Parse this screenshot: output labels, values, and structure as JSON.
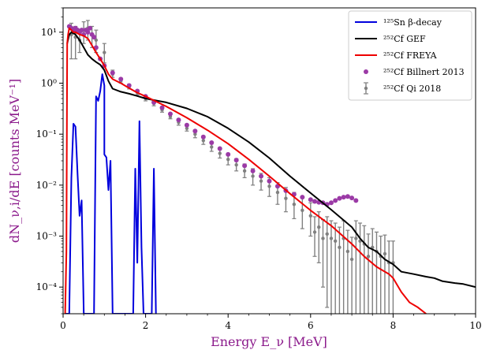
{
  "chart_data": {
    "type": "line",
    "title": "",
    "xlabel": "Energy E_ν [MeV]",
    "ylabel": "dN_ν,i/dE [counts MeV⁻¹]",
    "yscale": "log",
    "xlim": [
      0,
      10
    ],
    "ylim": [
      3e-05,
      30
    ],
    "x_ticks": [
      0,
      2,
      4,
      6,
      8,
      10
    ],
    "y_ticks": [
      0.0001,
      0.001,
      0.01,
      0.1,
      1,
      10
    ],
    "y_tick_labels": [
      "10⁻⁴",
      "10⁻³",
      "10⁻²",
      "10⁻¹",
      "10⁰",
      "10¹"
    ],
    "grid": false,
    "legend_position": "top-right",
    "colors": {
      "sn": "#0000dd",
      "gef": "#000000",
      "freya": "#ee0000",
      "billnert": "#9b3aa6",
      "qi": "#808080",
      "ylabel": "#8b1a8b"
    },
    "series": [
      {
        "name": "¹²⁵Sn β-decay",
        "kind": "line",
        "color": "#0000dd",
        "x": [
          0.05,
          0.1,
          0.15,
          0.2,
          0.25,
          0.3,
          0.35,
          0.4,
          0.45,
          0.5,
          0.55,
          0.6,
          0.65,
          0.65,
          0.7,
          0.75,
          0.8,
          0.85,
          0.85,
          0.9,
          0.95,
          1.0,
          1.0,
          1.05,
          1.1,
          1.15,
          1.2,
          1.25,
          1.3,
          1.35,
          1.4,
          1.45,
          1.5,
          1.5,
          1.55,
          1.6,
          1.65,
          1.7,
          1.75,
          1.8,
          1.85,
          1.9,
          1.95,
          2.0,
          2.05,
          2.1,
          2.15,
          2.2,
          2.25
        ],
        "y": [
          3e-05,
          3e-05,
          3e-05,
          0.014,
          0.16,
          0.14,
          0.017,
          0.0025,
          0.005,
          3e-05,
          3e-05,
          3e-05,
          3e-05,
          3e-05,
          3e-05,
          3e-05,
          0.55,
          0.45,
          0.45,
          0.7,
          1.5,
          0.9,
          0.04,
          0.035,
          0.008,
          0.03,
          3e-05,
          3e-05,
          3e-05,
          3e-05,
          3e-05,
          3e-05,
          3e-05,
          3e-05,
          3e-05,
          3e-05,
          3e-05,
          3e-05,
          0.021,
          0.0003,
          0.18,
          0.0006,
          3e-05,
          3e-05,
          3e-05,
          3e-05,
          3e-05,
          0.021,
          3e-05
        ]
      },
      {
        "name": "²⁵²Cf GEF",
        "kind": "line",
        "color": "#000000",
        "x": [
          0.1,
          0.15,
          0.2,
          0.3,
          0.4,
          0.5,
          0.6,
          0.7,
          0.8,
          0.9,
          1.0,
          1.1,
          1.2,
          1.4,
          1.6,
          1.8,
          2.0,
          2.5,
          3.0,
          3.5,
          4.0,
          4.5,
          5.0,
          5.5,
          6.0,
          6.5,
          7.0,
          7.2,
          7.4,
          7.6,
          7.8,
          8.0,
          8.2,
          8.5,
          8.8,
          9.0,
          9.2,
          9.5,
          9.7,
          10.0
        ],
        "y": [
          6,
          9,
          10,
          9,
          7,
          5,
          3.6,
          3,
          2.6,
          2.3,
          1.8,
          1.1,
          0.78,
          0.68,
          0.62,
          0.56,
          0.5,
          0.42,
          0.32,
          0.22,
          0.13,
          0.07,
          0.034,
          0.015,
          0.007,
          0.0033,
          0.0015,
          0.0009,
          0.0006,
          0.0005,
          0.00035,
          0.00028,
          0.0002,
          0.00018,
          0.00016,
          0.00015,
          0.00013,
          0.00012,
          0.000115,
          0.0001
        ]
      },
      {
        "name": "²⁵²Cf FREYA",
        "kind": "line",
        "color": "#ee0000",
        "x": [
          0.05,
          0.08,
          0.1,
          0.12,
          0.15,
          0.2,
          0.25,
          0.3,
          0.4,
          0.5,
          0.6,
          0.7,
          0.8,
          0.9,
          1.0,
          1.1,
          1.2,
          1.4,
          1.6,
          1.8,
          2.0,
          2.5,
          3.0,
          3.5,
          4.0,
          4.5,
          5.0,
          5.5,
          6.0,
          6.5,
          7.0,
          7.3,
          7.6,
          7.9,
          8.0,
          8.2,
          8.4,
          8.6,
          8.8
        ],
        "y": [
          3e-05,
          0.0005,
          6,
          9,
          12,
          11,
          10,
          10,
          9,
          8.5,
          7.5,
          5.5,
          4,
          3,
          2.2,
          1.5,
          1.2,
          1.0,
          0.8,
          0.65,
          0.55,
          0.35,
          0.21,
          0.12,
          0.065,
          0.032,
          0.015,
          0.0068,
          0.0032,
          0.0016,
          0.0007,
          0.0004,
          0.00025,
          0.00018,
          0.00015,
          8e-05,
          5e-05,
          4e-05,
          3e-05
        ]
      },
      {
        "name": "²⁵²Cf Billnert 2013",
        "kind": "scatter",
        "color": "#9b3aa6",
        "x": [
          0.15,
          0.2,
          0.25,
          0.3,
          0.35,
          0.4,
          0.45,
          0.5,
          0.55,
          0.6,
          0.65,
          0.7,
          0.75,
          0.8,
          0.9,
          1.0,
          1.2,
          1.4,
          1.6,
          1.8,
          2.0,
          2.2,
          2.4,
          2.6,
          2.8,
          3.0,
          3.2,
          3.4,
          3.6,
          3.8,
          4.0,
          4.2,
          4.4,
          4.6,
          4.8,
          5.0,
          5.2,
          5.4,
          5.6,
          5.8,
          6.0,
          6.1,
          6.2,
          6.3,
          6.4,
          6.5,
          6.6,
          6.7,
          6.8,
          6.9,
          7.0,
          7.1
        ],
        "y": [
          13,
          12,
          11,
          12,
          11,
          10,
          11,
          9,
          11,
          10,
          12,
          9,
          8,
          5,
          3,
          2.2,
          1.6,
          1.2,
          0.9,
          0.7,
          0.55,
          0.42,
          0.33,
          0.25,
          0.19,
          0.15,
          0.115,
          0.088,
          0.068,
          0.052,
          0.04,
          0.031,
          0.024,
          0.019,
          0.015,
          0.012,
          0.0095,
          0.0078,
          0.0066,
          0.0058,
          0.0052,
          0.0048,
          0.0046,
          0.0045,
          0.0042,
          0.0045,
          0.005,
          0.0055,
          0.0058,
          0.006,
          0.0056,
          0.005
        ]
      },
      {
        "name": "²⁵²Cf Qi 2018",
        "kind": "errorbar",
        "color": "#808080",
        "x": [
          0.2,
          0.3,
          0.4,
          0.5,
          0.6,
          0.7,
          0.8,
          1.0,
          1.2,
          1.4,
          1.6,
          1.8,
          2.0,
          2.2,
          2.4,
          2.6,
          2.8,
          3.0,
          3.2,
          3.4,
          3.6,
          3.8,
          4.0,
          4.2,
          4.4,
          4.6,
          4.8,
          5.0,
          5.2,
          5.4,
          5.6,
          5.8,
          6.0,
          6.1,
          6.2,
          6.3,
          6.4,
          6.5,
          6.6,
          6.7,
          6.8,
          6.9,
          7.0,
          7.1,
          7.2,
          7.3,
          7.4,
          7.5,
          7.6,
          7.7,
          7.8,
          7.9,
          8.0
        ],
        "y": [
          9,
          8,
          7,
          11,
          12,
          9,
          7,
          4,
          1.5,
          1.1,
          0.85,
          0.65,
          0.5,
          0.4,
          0.3,
          0.22,
          0.17,
          0.13,
          0.1,
          0.075,
          0.056,
          0.042,
          0.032,
          0.025,
          0.019,
          0.015,
          0.012,
          0.0095,
          0.0072,
          0.0055,
          0.0042,
          0.0032,
          0.0025,
          0.0012,
          0.0015,
          0.0009,
          0.0011,
          0.0009,
          0.0008,
          0.0006,
          0.0009,
          0.0005,
          0.00035,
          0.0009,
          0.0008,
          0.0007,
          0.0004,
          0.0006,
          0.0005,
          0.0004,
          0.00045,
          0.0003,
          0.0003
        ],
        "yerr_low": [
          6,
          5,
          3,
          5,
          5,
          4,
          3,
          1.5,
          0.2,
          0.1,
          0.08,
          0.06,
          0.05,
          0.04,
          0.03,
          0.02,
          0.02,
          0.015,
          0.015,
          0.012,
          0.01,
          0.008,
          0.007,
          0.006,
          0.005,
          0.005,
          0.004,
          0.0035,
          0.003,
          0.0025,
          0.002,
          0.0018,
          0.0015,
          0.0008,
          0.0012,
          0.0008,
          0.00106,
          0.00088,
          0.00078,
          0.00058,
          0.00088,
          0.00048,
          0.00033,
          0.00088,
          0.00078,
          0.00068,
          0.00038,
          0.00058,
          0.00048,
          0.00038,
          0.00043,
          0.00028,
          0.00028
        ],
        "yerr_high": [
          6,
          5,
          4,
          5,
          5,
          4,
          4,
          2,
          0.3,
          0.15,
          0.1,
          0.08,
          0.06,
          0.05,
          0.04,
          0.03,
          0.03,
          0.02,
          0.02,
          0.015,
          0.012,
          0.01,
          0.009,
          0.008,
          0.007,
          0.006,
          0.005,
          0.0045,
          0.004,
          0.0035,
          0.003,
          0.0025,
          0.002,
          0.0012,
          0.0015,
          0.0012,
          0.0013,
          0.0011,
          0.001,
          0.0009,
          0.0011,
          0.0008,
          0.0006,
          0.0011,
          0.001,
          0.0009,
          0.0007,
          0.0008,
          0.0007,
          0.0006,
          0.0006,
          0.0005,
          0.0005
        ]
      }
    ]
  }
}
